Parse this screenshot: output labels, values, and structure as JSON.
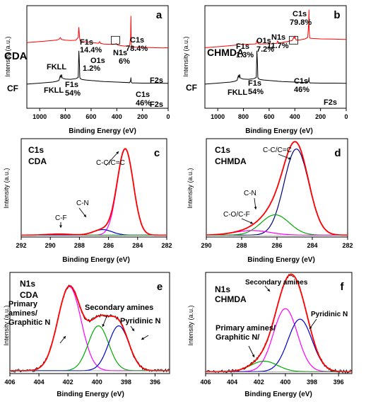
{
  "chart_data": [
    {
      "panel": "a",
      "type": "line",
      "xlabel": "Binding Energy (eV)",
      "ylabel": "Intensity (a.u.)",
      "xlim": [
        1100,
        0
      ],
      "xticks": [
        "1000",
        "800",
        "600",
        "400",
        "200",
        "0"
      ],
      "series": [
        {
          "name": "CDA",
          "color": "#ff0000",
          "x": [
            1100,
            1000,
            900,
            870,
            850,
            840,
            835,
            830,
            820,
            800,
            760,
            720,
            700,
            695,
            690,
            688,
            685,
            670,
            640,
            600,
            560,
            540,
            535,
            530,
            525,
            500,
            430,
            410,
            405,
            400,
            395,
            380,
            340,
            300,
            292,
            290,
            288,
            287,
            285,
            280,
            260,
            200,
            100,
            40,
            20,
            0
          ],
          "y": [
            0.64,
            0.65,
            0.66,
            0.665,
            0.672,
            0.688,
            0.68,
            0.67,
            0.668,
            0.664,
            0.66,
            0.663,
            0.69,
            0.79,
            0.7,
            0.676,
            0.655,
            0.65,
            0.646,
            0.642,
            0.636,
            0.634,
            0.648,
            0.644,
            0.632,
            0.626,
            0.622,
            0.626,
            0.63,
            0.622,
            0.618,
            0.612,
            0.606,
            0.61,
            0.7,
            0.9,
            0.72,
            0.62,
            0.606,
            0.598,
            0.596,
            0.594,
            0.59,
            0.588,
            0.59,
            0.588
          ]
        },
        {
          "name": "CF",
          "color": "#000000",
          "x": [
            1100,
            1000,
            900,
            870,
            850,
            840,
            835,
            830,
            825,
            820,
            800,
            760,
            720,
            700,
            695,
            690,
            688,
            685,
            670,
            640,
            600,
            540,
            530,
            500,
            400,
            300,
            292,
            290,
            288,
            285,
            280,
            260,
            200,
            100,
            40,
            20,
            0
          ],
          "y": [
            0.235,
            0.245,
            0.255,
            0.262,
            0.272,
            0.318,
            0.3,
            0.33,
            0.298,
            0.292,
            0.285,
            0.282,
            0.288,
            0.3,
            0.56,
            0.42,
            0.305,
            0.29,
            0.28,
            0.275,
            0.27,
            0.265,
            0.263,
            0.26,
            0.255,
            0.25,
            0.27,
            0.3,
            0.26,
            0.25,
            0.247,
            0.246,
            0.245,
            0.245,
            0.244,
            0.243,
            0.243
          ]
        }
      ],
      "annotations": [
        {
          "text": "CDA",
          "color": "#ff0000"
        },
        {
          "text": "FKLL",
          "color": "#000000"
        },
        {
          "text": "F1s",
          "color": "#ff0000"
        },
        {
          "text": "14.4%",
          "color": "#ff0000"
        },
        {
          "text": "O1s",
          "color": "#ff0000"
        },
        {
          "text": "1.2%",
          "color": "#ff0000"
        },
        {
          "text": "N1s",
          "color": "#ff0000"
        },
        {
          "text": "6%",
          "color": "#ff0000"
        },
        {
          "text": "C1s",
          "color": "#ff0000"
        },
        {
          "text": "78.4%",
          "color": "#ff0000"
        },
        {
          "text": "F2s",
          "color": "#000000"
        },
        {
          "text": "CF",
          "color": "#000000"
        },
        {
          "text": "FKLL",
          "color": "#000000"
        },
        {
          "text": "F1s",
          "color": "#000000"
        },
        {
          "text": "54%",
          "color": "#000000"
        },
        {
          "text": "C1s",
          "color": "#000000"
        },
        {
          "text": "46%",
          "color": "#000000"
        },
        {
          "text": "F2s",
          "color": "#000000"
        }
      ]
    },
    {
      "panel": "b",
      "type": "line",
      "xlabel": "Binding Energy (eV)",
      "ylabel": "Intensity (a.u.)",
      "xlim": [
        1100,
        0
      ],
      "xticks": [
        "1000",
        "800",
        "600",
        "400",
        "200",
        "0"
      ],
      "series": [
        {
          "name": "CHMDA",
          "color": "#ff0000",
          "x": [
            1100,
            1000,
            900,
            860,
            850,
            840,
            835,
            830,
            800,
            760,
            720,
            700,
            695,
            690,
            685,
            670,
            600,
            540,
            535,
            530,
            525,
            500,
            420,
            410,
            405,
            400,
            395,
            390,
            360,
            320,
            300,
            292,
            290,
            288,
            285,
            280,
            260,
            200,
            100,
            40,
            0
          ],
          "y": [
            0.59,
            0.6,
            0.61,
            0.615,
            0.622,
            0.63,
            0.626,
            0.624,
            0.622,
            0.624,
            0.626,
            0.628,
            0.665,
            0.64,
            0.628,
            0.626,
            0.628,
            0.632,
            0.655,
            0.65,
            0.636,
            0.64,
            0.66,
            0.69,
            0.682,
            0.7,
            0.68,
            0.664,
            0.666,
            0.676,
            0.69,
            0.83,
            0.96,
            0.76,
            0.69,
            0.682,
            0.68,
            0.676,
            0.674,
            0.672,
            0.67
          ]
        },
        {
          "name": "CF",
          "color": "#000000",
          "x": [
            1100,
            1000,
            900,
            870,
            850,
            840,
            835,
            830,
            825,
            820,
            800,
            760,
            720,
            700,
            695,
            690,
            688,
            685,
            670,
            640,
            600,
            540,
            530,
            500,
            400,
            300,
            292,
            290,
            288,
            285,
            280,
            260,
            200,
            100,
            40,
            20,
            0
          ],
          "y": [
            0.235,
            0.245,
            0.255,
            0.262,
            0.272,
            0.318,
            0.3,
            0.33,
            0.298,
            0.292,
            0.285,
            0.282,
            0.288,
            0.3,
            0.56,
            0.42,
            0.305,
            0.29,
            0.28,
            0.275,
            0.27,
            0.265,
            0.263,
            0.26,
            0.255,
            0.25,
            0.27,
            0.3,
            0.26,
            0.25,
            0.247,
            0.246,
            0.245,
            0.245,
            0.244,
            0.243,
            0.243
          ]
        }
      ],
      "annotations": [
        {
          "text": "CHMDA",
          "color": "#ff0000"
        },
        {
          "text": "F1s",
          "color": "#ff0000"
        },
        {
          "text": "1.3%",
          "color": "#ff0000"
        },
        {
          "text": "O1s",
          "color": "#ff0000"
        },
        {
          "text": "7.2%",
          "color": "#ff0000"
        },
        {
          "text": "N1s",
          "color": "#ff0000"
        },
        {
          "text": "11.7%",
          "color": "#ff0000"
        },
        {
          "text": "C1s",
          "color": "#ff0000"
        },
        {
          "text": "79.8%",
          "color": "#ff0000"
        },
        {
          "text": "CF",
          "color": "#000000"
        },
        {
          "text": "FKLL",
          "color": "#000000"
        },
        {
          "text": "F1s",
          "color": "#000000"
        },
        {
          "text": "54%",
          "color": "#000000"
        },
        {
          "text": "C1s",
          "color": "#000000"
        },
        {
          "text": "46%",
          "color": "#000000"
        },
        {
          "text": "F2s",
          "color": "#000000"
        }
      ]
    },
    {
      "panel": "c",
      "type": "line",
      "title_lines": [
        "C1s",
        "CDA"
      ],
      "xlabel": "Binding Energy (eV)",
      "ylabel": "Intensity (a.u.)",
      "xlim": [
        292,
        282
      ],
      "ylim": [
        0,
        1
      ],
      "xticks": [
        "292",
        "290",
        "288",
        "286",
        "284",
        "282"
      ],
      "envelope_color": "#ff0000",
      "baseline": 0.02,
      "components": [
        {
          "label": "C-C/C=C",
          "center": 284.85,
          "sigma": 0.55,
          "amp": 0.93,
          "color": "#ff00ff"
        },
        {
          "label": "C-N",
          "center": 286.4,
          "sigma": 0.65,
          "amp": 0.06,
          "color": "#0000cc"
        },
        {
          "label": "C-F",
          "center": 289.4,
          "sigma": 0.8,
          "amp": 0.012,
          "color": "#00aa00"
        }
      ],
      "annotations": [
        {
          "text": "C-C/C=C",
          "color": "#000000"
        },
        {
          "text": "C-N",
          "color": "#000000"
        },
        {
          "text": "C-F",
          "color": "#000000"
        }
      ]
    },
    {
      "panel": "d",
      "type": "line",
      "title_lines": [
        "C1s",
        "CHMDA"
      ],
      "xlabel": "Binding Energy (eV)",
      "ylabel": "Intensity (a.u.)",
      "xlim": [
        290,
        282
      ],
      "ylim": [
        0,
        1
      ],
      "xticks": [
        "290",
        "288",
        "286",
        "284",
        "282"
      ],
      "envelope_color": "#ff0000",
      "baseline": 0.02,
      "components": [
        {
          "label": "C-C/C=C",
          "center": 284.9,
          "sigma": 0.7,
          "amp": 0.93,
          "color": "#000080"
        },
        {
          "label": "C-N",
          "center": 286.1,
          "sigma": 0.8,
          "amp": 0.22,
          "color": "#00aa00"
        },
        {
          "label": "C-O/C-F",
          "center": 287.4,
          "sigma": 1.0,
          "amp": 0.05,
          "color": "#ff00ff"
        }
      ],
      "annotations": [
        {
          "text": "C-C/C=C",
          "color": "#000000"
        },
        {
          "text": "C-N",
          "color": "#000000"
        },
        {
          "text": "C-O/C-F",
          "color": "#000000"
        }
      ]
    },
    {
      "panel": "e",
      "type": "line",
      "title_lines": [
        "N1s",
        "CDA"
      ],
      "xlabel": "Binding Energy (eV)",
      "ylabel": "Intensity (a.u.)",
      "xlim": [
        406,
        395
      ],
      "ylim": [
        0,
        1
      ],
      "xticks": [
        "406",
        "404",
        "402",
        "400",
        "398",
        "396"
      ],
      "envelope_color": "#ff0000",
      "raw_color": "#000000",
      "baseline": 0.03,
      "components": [
        {
          "label": "Primary amines/ Graphitic N",
          "center": 401.9,
          "sigma": 0.8,
          "amp": 0.88,
          "color": "#ff00ff"
        },
        {
          "label": "Secondary amines",
          "center": 399.9,
          "sigma": 0.7,
          "amp": 0.47,
          "color": "#00aa00"
        },
        {
          "label": "Pyridinic N",
          "center": 398.5,
          "sigma": 0.7,
          "amp": 0.47,
          "color": "#0000cc"
        }
      ],
      "annotations": [
        {
          "text": "Primary",
          "color": "#000000"
        },
        {
          "text": "amines/",
          "color": "#000000"
        },
        {
          "text": "Graphitic N",
          "color": "#000000"
        },
        {
          "text": "Secondary amines",
          "color": "#000000"
        },
        {
          "text": "Pyridinic N",
          "color": "#000000"
        }
      ]
    },
    {
      "panel": "f",
      "type": "line",
      "title_lines": [
        "N1s",
        "CHMDA"
      ],
      "xlabel": "Binding Energy (eV)",
      "ylabel": "Intensity (a.u.)",
      "xlim": [
        406,
        395
      ],
      "ylim": [
        0,
        1
      ],
      "xticks": [
        "406",
        "404",
        "402",
        "400",
        "398",
        "396"
      ],
      "envelope_color": "#ff0000",
      "raw_color": "#000000",
      "baseline": 0.02,
      "components": [
        {
          "label": "Secondary amines",
          "center": 400.0,
          "sigma": 0.9,
          "amp": 0.66,
          "color": "#ff00ff"
        },
        {
          "label": "Pyridinic N",
          "center": 398.9,
          "sigma": 0.9,
          "amp": 0.55,
          "color": "#0000cc"
        },
        {
          "label": "Primary amines/ Graphitic N/",
          "center": 401.6,
          "sigma": 1.0,
          "amp": 0.11,
          "color": "#00aa00"
        }
      ],
      "annotations": [
        {
          "text": "Secondary amines",
          "color": "#000000"
        },
        {
          "text": "Pyridinic N",
          "color": "#000000"
        },
        {
          "text": "Primary amines/",
          "color": "#000000"
        },
        {
          "text": "Graphitic N/",
          "color": "#000000"
        }
      ]
    }
  ]
}
